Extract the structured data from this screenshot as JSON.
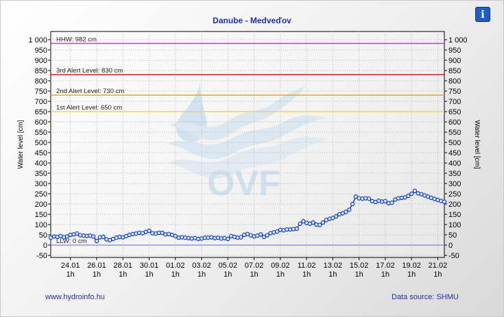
{
  "title": "Danube - Medveďov",
  "footer": {
    "link": "www.hydroinfo.hu",
    "source": "Data source: SHMU"
  },
  "info_icon": {
    "name": "info-icon",
    "glyph": "i"
  },
  "watermark": {
    "text": "OVF",
    "color": "#9cc4e4"
  },
  "chart_data": {
    "type": "line",
    "title": "Danube - Medveďov",
    "ylabel": "Water level [cm]",
    "ylabel_right": "Water level [cm]",
    "ylim": [
      -60,
      1040
    ],
    "yticks": [
      -50,
      0,
      50,
      100,
      150,
      200,
      250,
      300,
      350,
      400,
      450,
      500,
      550,
      600,
      650,
      700,
      750,
      800,
      850,
      900,
      950,
      1000
    ],
    "ytick_labels": [
      "-50",
      "0",
      "50",
      "100",
      "150",
      "200",
      "250",
      "300",
      "350",
      "400",
      "450",
      "500",
      "550",
      "600",
      "650",
      "700",
      "750",
      "800",
      "850",
      "900",
      "950",
      "1 000"
    ],
    "xlim": [
      0,
      30
    ],
    "xticks": [
      {
        "x": 1.5,
        "date": "24.01",
        "hour": "1h"
      },
      {
        "x": 3.5,
        "date": "26.01",
        "hour": "1h"
      },
      {
        "x": 5.5,
        "date": "28.01",
        "hour": "1h"
      },
      {
        "x": 7.5,
        "date": "30.01",
        "hour": "1h"
      },
      {
        "x": 9.5,
        "date": "01.02",
        "hour": "1h"
      },
      {
        "x": 11.5,
        "date": "03.02",
        "hour": "1h"
      },
      {
        "x": 13.5,
        "date": "05.02",
        "hour": "1h"
      },
      {
        "x": 15.5,
        "date": "07.02",
        "hour": "1h"
      },
      {
        "x": 17.5,
        "date": "09.02",
        "hour": "1h"
      },
      {
        "x": 19.5,
        "date": "11.02",
        "hour": "1h"
      },
      {
        "x": 21.5,
        "date": "13.02",
        "hour": "1h"
      },
      {
        "x": 23.5,
        "date": "15.02",
        "hour": "1h"
      },
      {
        "x": 25.5,
        "date": "17.02",
        "hour": "1h"
      },
      {
        "x": 27.5,
        "date": "19.02",
        "hour": "1h"
      },
      {
        "x": 29.5,
        "date": "21.02",
        "hour": "1h"
      }
    ],
    "grid": true,
    "reference_lines": [
      {
        "label": "HHW: 982 cm",
        "value": 982,
        "color": "#d040d0"
      },
      {
        "label": "3rd Alert Level: 830 cm",
        "value": 830,
        "color": "#d81818"
      },
      {
        "label": "2nd Alert Level: 730 cm",
        "value": 730,
        "color": "#f0a020"
      },
      {
        "label": "1st Alert Level: 650 cm",
        "value": 650,
        "color": "#e8e028"
      },
      {
        "label": "LLW: 0 cm",
        "value": 0,
        "color": "#9090ee"
      }
    ],
    "series": [
      {
        "color": "#0d2cb8",
        "points": [
          [
            0.0,
            36
          ],
          [
            0.25,
            42
          ],
          [
            0.5,
            40
          ],
          [
            0.75,
            44
          ],
          [
            1.0,
            38
          ],
          [
            1.25,
            42
          ],
          [
            1.5,
            50
          ],
          [
            1.75,
            52
          ],
          [
            2.0,
            56
          ],
          [
            2.25,
            48
          ],
          [
            2.5,
            46
          ],
          [
            2.75,
            44
          ],
          [
            3.0,
            46
          ],
          [
            3.25,
            42
          ],
          [
            3.5,
            20
          ],
          [
            3.75,
            38
          ],
          [
            4.0,
            40
          ],
          [
            4.25,
            28
          ],
          [
            4.5,
            24
          ],
          [
            4.75,
            30
          ],
          [
            5.0,
            36
          ],
          [
            5.25,
            40
          ],
          [
            5.5,
            38
          ],
          [
            5.75,
            44
          ],
          [
            6.0,
            50
          ],
          [
            6.25,
            54
          ],
          [
            6.5,
            56
          ],
          [
            6.75,
            60
          ],
          [
            7.0,
            58
          ],
          [
            7.25,
            64
          ],
          [
            7.5,
            70
          ],
          [
            7.75,
            58
          ],
          [
            8.0,
            56
          ],
          [
            8.25,
            60
          ],
          [
            8.5,
            60
          ],
          [
            8.75,
            52
          ],
          [
            9.0,
            54
          ],
          [
            9.25,
            50
          ],
          [
            9.5,
            44
          ],
          [
            9.75,
            36
          ],
          [
            10.0,
            38
          ],
          [
            10.25,
            36
          ],
          [
            10.5,
            34
          ],
          [
            10.75,
            32
          ],
          [
            11.0,
            34
          ],
          [
            11.25,
            30
          ],
          [
            11.5,
            32
          ],
          [
            11.75,
            36
          ],
          [
            12.0,
            36
          ],
          [
            12.25,
            38
          ],
          [
            12.5,
            34
          ],
          [
            12.75,
            36
          ],
          [
            13.0,
            32
          ],
          [
            13.25,
            34
          ],
          [
            13.5,
            30
          ],
          [
            13.75,
            44
          ],
          [
            14.0,
            40
          ],
          [
            14.25,
            36
          ],
          [
            14.5,
            38
          ],
          [
            14.75,
            50
          ],
          [
            15.0,
            54
          ],
          [
            15.25,
            48
          ],
          [
            15.5,
            42
          ],
          [
            15.75,
            46
          ],
          [
            16.0,
            52
          ],
          [
            16.25,
            40
          ],
          [
            16.5,
            48
          ],
          [
            16.75,
            58
          ],
          [
            17.0,
            62
          ],
          [
            17.25,
            66
          ],
          [
            17.5,
            74
          ],
          [
            17.75,
            72
          ],
          [
            18.0,
            76
          ],
          [
            18.25,
            76
          ],
          [
            18.5,
            78
          ],
          [
            18.75,
            80
          ],
          [
            19.0,
            104
          ],
          [
            19.25,
            116
          ],
          [
            19.5,
            108
          ],
          [
            19.75,
            104
          ],
          [
            20.0,
            110
          ],
          [
            20.25,
            100
          ],
          [
            20.5,
            98
          ],
          [
            20.75,
            110
          ],
          [
            21.0,
            122
          ],
          [
            21.25,
            128
          ],
          [
            21.5,
            132
          ],
          [
            21.75,
            140
          ],
          [
            22.0,
            150
          ],
          [
            22.25,
            155
          ],
          [
            22.5,
            162
          ],
          [
            22.75,
            172
          ],
          [
            23.0,
            200
          ],
          [
            23.25,
            236
          ],
          [
            23.5,
            228
          ],
          [
            23.75,
            226
          ],
          [
            24.0,
            228
          ],
          [
            24.25,
            226
          ],
          [
            24.5,
            214
          ],
          [
            24.75,
            210
          ],
          [
            25.0,
            216
          ],
          [
            25.25,
            212
          ],
          [
            25.5,
            214
          ],
          [
            25.75,
            204
          ],
          [
            26.0,
            206
          ],
          [
            26.25,
            222
          ],
          [
            26.5,
            228
          ],
          [
            26.75,
            230
          ],
          [
            27.0,
            232
          ],
          [
            27.25,
            240
          ],
          [
            27.5,
            250
          ],
          [
            27.75,
            264
          ],
          [
            28.0,
            252
          ],
          [
            28.25,
            248
          ],
          [
            28.5,
            242
          ],
          [
            28.75,
            236
          ],
          [
            29.0,
            230
          ],
          [
            29.25,
            225
          ],
          [
            29.5,
            220
          ],
          [
            29.75,
            215
          ],
          [
            30.0,
            211
          ]
        ]
      }
    ]
  }
}
